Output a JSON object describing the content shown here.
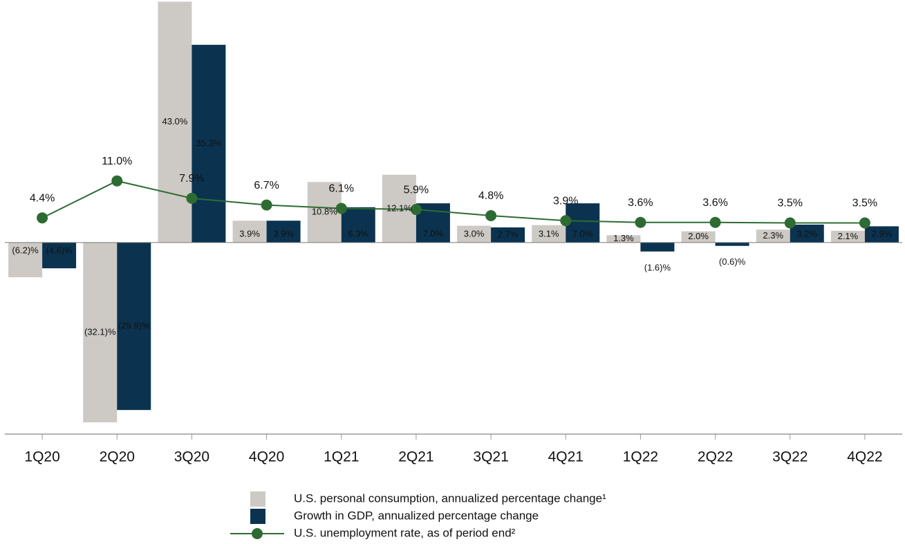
{
  "chart_data": {
    "type": "bar",
    "categories": [
      "1Q20",
      "2Q20",
      "3Q20",
      "4Q20",
      "1Q21",
      "2Q21",
      "3Q21",
      "4Q21",
      "1Q22",
      "2Q22",
      "3Q22",
      "4Q22"
    ],
    "series": [
      {
        "name": "U.S. personal consumption, annualized percentage change¹",
        "type": "bar",
        "color": "#cdc9c4",
        "values": [
          -6.2,
          -32.1,
          43.0,
          3.9,
          10.8,
          12.1,
          3.0,
          3.1,
          1.3,
          2.0,
          2.3,
          2.1
        ],
        "value_labels": [
          "(6.2)%",
          "(32.1)%",
          "43.0%",
          "3.9%",
          "10.8%",
          "12.1%",
          "3.0%",
          "3.1%",
          "1.3%",
          "2.0%",
          "2.3%",
          "2.1%"
        ]
      },
      {
        "name": "Growth in GDP, annualized percentage change",
        "type": "bar",
        "color": "#0b3350",
        "values": [
          -4.6,
          -29.9,
          35.3,
          3.9,
          6.3,
          7.0,
          2.7,
          7.0,
          -1.6,
          -0.6,
          3.2,
          2.9
        ],
        "value_labels": [
          "(4.6)%",
          "(29.9)%",
          "35.3%",
          "3.9%",
          "6.3%",
          "7.0%",
          "2.7%",
          "7.0%",
          "(1.6)%",
          "(0.6)%",
          "3.2%",
          "2.9%"
        ]
      },
      {
        "name": "U.S. unemployment rate, as of period end²",
        "type": "line",
        "color": "#2e6b32",
        "values": [
          4.4,
          11.0,
          7.9,
          6.7,
          6.1,
          5.9,
          4.8,
          3.9,
          3.6,
          3.6,
          3.5,
          3.5
        ],
        "value_labels": [
          "4.4%",
          "11.0%",
          "7.9%",
          "6.7%",
          "6.1%",
          "5.9%",
          "4.8%",
          "3.9%",
          "3.6%",
          "3.6%",
          "3.5%",
          "3.5%"
        ]
      }
    ],
    "ylim": [
      -34.2,
      43.3
    ]
  }
}
